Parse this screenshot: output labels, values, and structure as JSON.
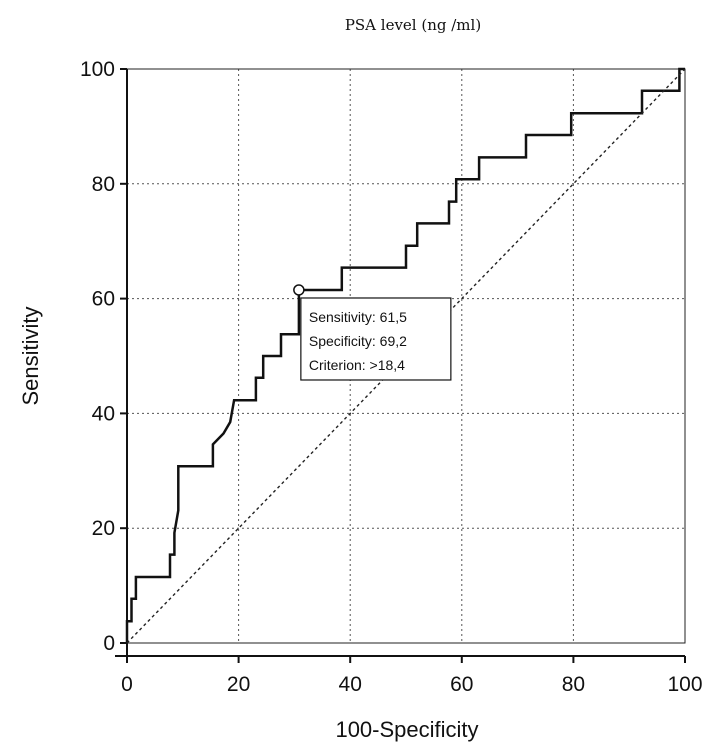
{
  "chart_data": {
    "type": "line",
    "title": "PSA level (ng /ml)",
    "xlabel": "100-Specificity",
    "ylabel": "Sensitivity",
    "xlim": [
      0,
      100
    ],
    "ylim": [
      0,
      100
    ],
    "x_ticks": [
      "0",
      "20",
      "40",
      "60",
      "80",
      "100"
    ],
    "y_ticks": [
      "0",
      "20",
      "40",
      "60",
      "80",
      "100"
    ],
    "grid": true,
    "grid_style": "dotted",
    "series": [
      {
        "name": "",
        "style": "solid-step",
        "points": [
          [
            0,
            0
          ],
          [
            0,
            3.8
          ],
          [
            0.8,
            3.8
          ],
          [
            0.8,
            7.7
          ],
          [
            1.6,
            7.7
          ],
          [
            1.6,
            11.5
          ],
          [
            7.7,
            11.5
          ],
          [
            7.7,
            15.4
          ],
          [
            8.5,
            15.4
          ],
          [
            8.5,
            19.2
          ],
          [
            9.2,
            23.1
          ],
          [
            9.2,
            30.8
          ],
          [
            15.4,
            30.8
          ],
          [
            15.4,
            34.6
          ],
          [
            17.3,
            36.5
          ],
          [
            18.5,
            38.5
          ],
          [
            19.2,
            42.3
          ],
          [
            23.1,
            42.3
          ],
          [
            23.1,
            46.2
          ],
          [
            24.4,
            46.2
          ],
          [
            24.4,
            50
          ],
          [
            27.6,
            50
          ],
          [
            27.6,
            53.8
          ],
          [
            30.8,
            53.8
          ],
          [
            30.8,
            61.5
          ],
          [
            38.5,
            61.5
          ],
          [
            38.5,
            65.4
          ],
          [
            50,
            65.4
          ],
          [
            50,
            69.2
          ],
          [
            52,
            69.2
          ],
          [
            52,
            73.1
          ],
          [
            57.7,
            73.1
          ],
          [
            57.7,
            76.9
          ],
          [
            59,
            76.9
          ],
          [
            59,
            80.8
          ],
          [
            63.1,
            80.8
          ],
          [
            63.1,
            84.6
          ],
          [
            71.5,
            84.6
          ],
          [
            71.5,
            88.5
          ],
          [
            79.6,
            88.5
          ],
          [
            79.6,
            92.3
          ],
          [
            92.3,
            92.3
          ],
          [
            92.3,
            96.2
          ],
          [
            99,
            96.2
          ],
          [
            99,
            100
          ],
          [
            100,
            100
          ]
        ]
      },
      {
        "name": "",
        "style": "dotted-diagonal",
        "points": [
          [
            0,
            0
          ],
          [
            100,
            100
          ]
        ]
      }
    ],
    "marker": {
      "x": 30.8,
      "y": 61.5,
      "shape": "open-circle"
    },
    "annotation": {
      "lines": [
        "Sensitivity: 61,5",
        "Specificity: 69,2",
        "Criterion: >18,4"
      ]
    }
  }
}
